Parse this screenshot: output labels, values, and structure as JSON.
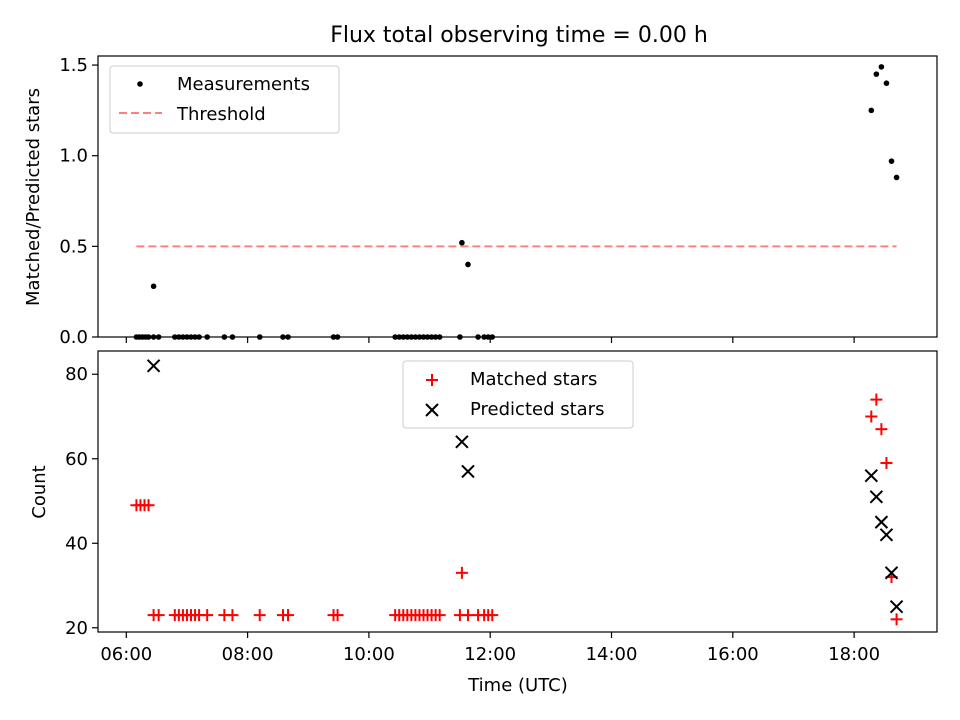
{
  "figure": {
    "title": "Flux total observing time = 0.00 h"
  },
  "chart_data": [
    {
      "type": "scatter",
      "ylabel": "Matched/Predicted stars",
      "xlim": [
        "05:32",
        "19:22"
      ],
      "ylim": [
        0,
        1.55
      ],
      "y_ticks": [
        0.0,
        0.5,
        1.0,
        1.5
      ],
      "y_tick_labels": [
        "0.0",
        "0.5",
        "1.0",
        "1.5"
      ],
      "legend": {
        "placement": "top-left",
        "entries": [
          "Measurements",
          "Threshold"
        ]
      },
      "colors": {
        "measurements": "#000000",
        "threshold": "#ff7f7f"
      },
      "series": [
        {
          "name": "Measurements",
          "marker": "dot",
          "x": [
            "06:10",
            "06:13",
            "06:16",
            "06:19",
            "06:22",
            "06:27",
            "06:32",
            "06:48",
            "06:52",
            "06:56",
            "07:00",
            "07:04",
            "07:08",
            "07:12",
            "07:20",
            "07:37",
            "07:45",
            "08:12",
            "08:35",
            "08:40",
            "09:25",
            "09:29",
            "10:26",
            "10:30",
            "10:34",
            "10:38",
            "10:42",
            "10:46",
            "10:50",
            "10:54",
            "10:58",
            "11:02",
            "11:06",
            "11:10",
            "11:30",
            "11:48",
            "11:54",
            "11:58",
            "12:02",
            "06:27",
            "11:32",
            "11:38",
            "18:17",
            "18:22",
            "18:27",
            "18:32",
            "18:37",
            "18:42"
          ],
          "y": [
            0,
            0,
            0,
            0,
            0,
            0,
            0,
            0,
            0,
            0,
            0,
            0,
            0,
            0,
            0,
            0,
            0,
            0,
            0,
            0,
            0,
            0,
            0,
            0,
            0,
            0,
            0,
            0,
            0,
            0,
            0,
            0,
            0,
            0,
            0,
            0,
            0,
            0,
            0,
            0.28,
            0.52,
            0.4,
            1.25,
            1.45,
            1.49,
            1.4,
            0.97,
            0.88
          ]
        },
        {
          "name": "Threshold",
          "marker": "dashed-line",
          "x": [
            "06:10",
            "18:42"
          ],
          "y": [
            0.5,
            0.5
          ]
        }
      ]
    },
    {
      "type": "scatter",
      "ylabel": "Count",
      "xlabel": "Time (UTC)",
      "xlim": [
        "05:32",
        "19:22"
      ],
      "ylim": [
        19,
        85.5
      ],
      "x_ticks": [
        "06:00",
        "08:00",
        "10:00",
        "12:00",
        "14:00",
        "16:00",
        "18:00"
      ],
      "y_ticks": [
        20,
        40,
        60,
        80
      ],
      "y_tick_labels": [
        "20",
        "40",
        "60",
        "80"
      ],
      "legend": {
        "placement": "upper-center",
        "entries": [
          "Matched stars",
          "Predicted stars"
        ]
      },
      "colors": {
        "matched": "#ff0000",
        "predicted": "#000000"
      },
      "series": [
        {
          "name": "Matched stars",
          "marker": "plus",
          "x": [
            "06:10",
            "06:14",
            "06:18",
            "06:22",
            "06:27",
            "06:32",
            "06:48",
            "06:52",
            "06:56",
            "07:00",
            "07:04",
            "07:08",
            "07:12",
            "07:20",
            "07:37",
            "07:45",
            "08:12",
            "08:35",
            "08:40",
            "09:25",
            "09:29",
            "10:26",
            "10:30",
            "10:34",
            "10:38",
            "10:42",
            "10:46",
            "10:50",
            "10:54",
            "10:58",
            "11:02",
            "11:06",
            "11:10",
            "11:30",
            "11:48",
            "11:54",
            "11:58",
            "12:02",
            "11:32",
            "11:38",
            "18:17",
            "18:22",
            "18:27",
            "18:32",
            "18:37",
            "18:42"
          ],
          "y": [
            49,
            49,
            49,
            49,
            23,
            23,
            23,
            23,
            23,
            23,
            23,
            23,
            23,
            23,
            23,
            23,
            23,
            23,
            23,
            23,
            23,
            23,
            23,
            23,
            23,
            23,
            23,
            23,
            23,
            23,
            23,
            23,
            23,
            23,
            23,
            23,
            23,
            23,
            33,
            23,
            70,
            74,
            67,
            59,
            32,
            22
          ]
        },
        {
          "name": "Predicted stars",
          "marker": "x",
          "x": [
            "06:27",
            "11:32",
            "11:38",
            "18:17",
            "18:22",
            "18:27",
            "18:32",
            "18:37",
            "18:42"
          ],
          "y": [
            82,
            64,
            57,
            56,
            51,
            45,
            42,
            33,
            25
          ]
        }
      ]
    }
  ]
}
